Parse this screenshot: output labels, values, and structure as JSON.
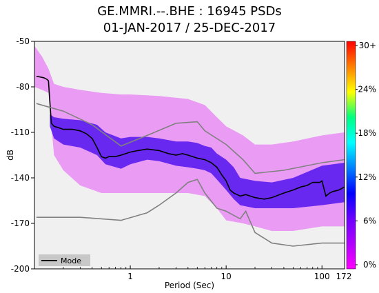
{
  "chart_data": {
    "type": "heatmap",
    "title": "GE.MMRI.--.BHE : 16945 PSDs",
    "subtitle": "01-JAN-2017 / 25-DEC-2017",
    "xlabel": "Period (Sec)",
    "ylabel": "dB",
    "x_scale": "log",
    "xlim": [
      0.1,
      172
    ],
    "ylim": [
      -200,
      -50
    ],
    "x_ticks": [
      {
        "value": 1,
        "label": "1"
      },
      {
        "value": 10,
        "label": "10"
      },
      {
        "value": 100,
        "label": "100"
      },
      {
        "value": 172,
        "label": "172"
      }
    ],
    "y_ticks": [
      -50,
      -80,
      -110,
      -140,
      -170,
      -200
    ],
    "colorbar": {
      "ticks": [
        "30+",
        "24%",
        "18%",
        "12%",
        "6%",
        "0%"
      ],
      "colors": [
        "#ff0000",
        "#ff8000",
        "#ffff00",
        "#00ff80",
        "#00ffff",
        "#0080ff",
        "#0000ff",
        "#6a00ff",
        "#b000ff",
        "#ff00ff"
      ]
    },
    "legend": {
      "placement": "bottom-left",
      "entries": [
        "Mode"
      ]
    },
    "series": [
      {
        "name": "Mode",
        "x": [
          0.105,
          0.115,
          0.125,
          0.135,
          0.14,
          0.15,
          0.16,
          0.18,
          0.2,
          0.25,
          0.3,
          0.35,
          0.4,
          0.45,
          0.5,
          0.55,
          0.6,
          0.7,
          0.8,
          1,
          1.2,
          1.5,
          2,
          2.5,
          3,
          3.5,
          4,
          5,
          6,
          7,
          8,
          9,
          10,
          11,
          12,
          13,
          14,
          16,
          20,
          25,
          30,
          40,
          50,
          60,
          70,
          80,
          90,
          95,
          100,
          110,
          120,
          130,
          150,
          172
        ],
        "y": [
          -73,
          -73.5,
          -74,
          -75,
          -76,
          -104,
          -106,
          -107,
          -108,
          -108,
          -109,
          -111,
          -114,
          -120,
          -126,
          -127,
          -126,
          -126,
          -125,
          -123,
          -122,
          -121,
          -122,
          -124,
          -125,
          -124,
          -125,
          -127,
          -128,
          -130,
          -133,
          -138,
          -142,
          -148,
          -150,
          -151,
          -152,
          -151,
          -153,
          -154,
          -153,
          -150,
          -148,
          -146,
          -145,
          -143,
          -143,
          -143,
          -142,
          -152,
          -150,
          -149,
          -148,
          -146
        ]
      },
      {
        "name": "",
        "x": [
          0.105,
          0.2,
          0.4,
          0.8,
          1.5,
          3,
          5,
          6,
          10,
          15,
          20,
          40,
          100,
          172
        ],
        "y": [
          -91,
          -96,
          -105,
          -119,
          -112,
          -104,
          -103,
          -109,
          -118,
          -128,
          -137,
          -135,
          -130,
          -128
        ]
      },
      {
        "name": "",
        "x": [
          0.105,
          0.3,
          0.8,
          1.5,
          2,
          3,
          4,
          5,
          6,
          8,
          10,
          14,
          16,
          20,
          30,
          50,
          100,
          172
        ],
        "y": [
          -166,
          -166,
          -168,
          -163,
          -158,
          -150,
          -143,
          -141,
          -150,
          -160,
          -162,
          -167,
          -162,
          -176,
          -183,
          -185,
          -183,
          -183
        ]
      }
    ],
    "density_bands": [
      {
        "x": [
          0.1,
          0.12,
          0.14,
          0.16,
          0.2,
          0.3,
          0.5,
          0.8,
          1,
          2,
          4,
          6,
          8,
          10,
          15,
          20,
          30,
          50,
          100,
          172
        ],
        "upper": [
          -53,
          -60,
          -68,
          -78,
          -80,
          -82,
          -84,
          -85,
          -85,
          -86,
          -88,
          -92,
          -100,
          -106,
          -112,
          -118,
          -118,
          -116,
          -112,
          -110
        ],
        "lower": [
          -80,
          -82,
          -84,
          -125,
          -135,
          -145,
          -150,
          -150,
          -150,
          -150,
          -150,
          -152,
          -160,
          -168,
          -170,
          -172,
          -175,
          -175,
          -172,
          -172
        ],
        "level": "low"
      },
      {
        "x": [
          0.145,
          0.16,
          0.2,
          0.3,
          0.45,
          0.55,
          0.8,
          1,
          1.5,
          2,
          3,
          4,
          5,
          6,
          7,
          8,
          10,
          12,
          14,
          20,
          30,
          50,
          100,
          172
        ],
        "upper": [
          -98,
          -100,
          -101,
          -102,
          -105,
          -110,
          -114,
          -113,
          -113,
          -114,
          -116,
          -116,
          -117,
          -119,
          -120,
          -124,
          -128,
          -133,
          -140,
          -142,
          -143,
          -140,
          -132,
          -130
        ],
        "lower": [
          -106,
          -114,
          -118,
          -120,
          -125,
          -131,
          -134,
          -131,
          -128,
          -129,
          -132,
          -133,
          -134,
          -135,
          -137,
          -141,
          -148,
          -154,
          -158,
          -160,
          -160,
          -160,
          -158,
          -156
        ],
        "level": "high"
      }
    ]
  }
}
